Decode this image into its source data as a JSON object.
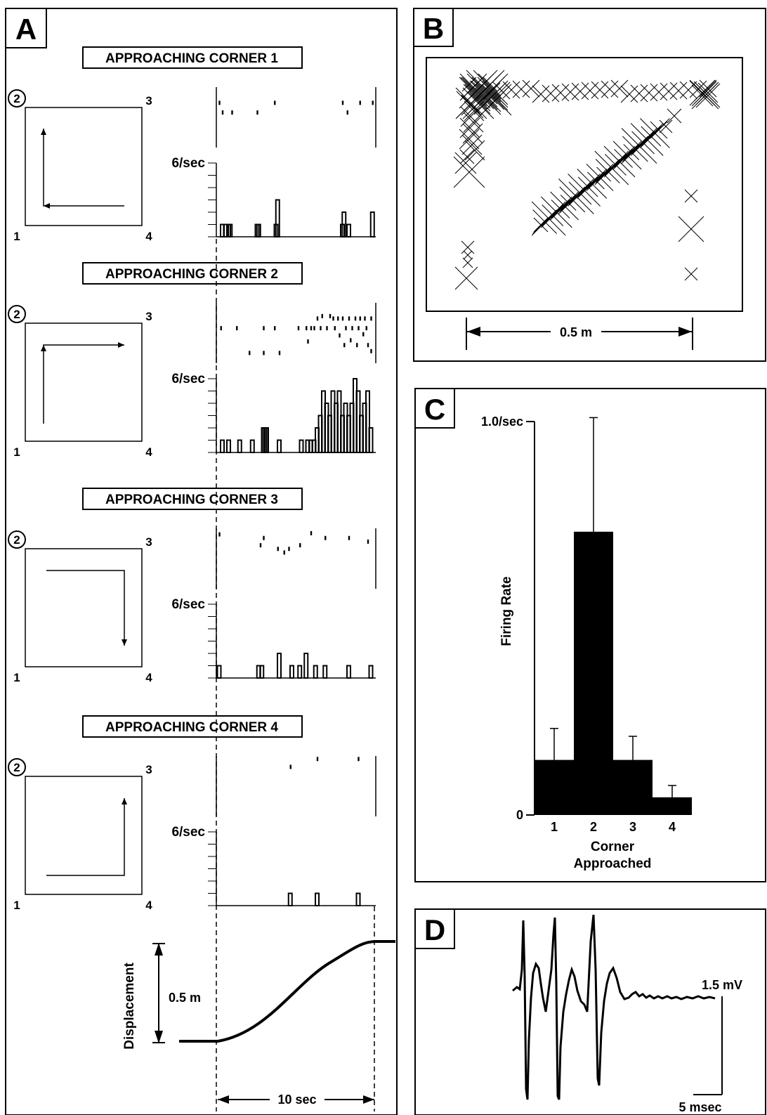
{
  "panels": {
    "A": {
      "letter": "A",
      "rows": [
        {
          "title": "APPROACHING CORNER 1",
          "corners": [
            "2",
            "3",
            "1",
            "4"
          ],
          "rate_label": "6/sec",
          "path": "corner4-to-corner1",
          "raster": [
            [
              0.02,
              0.26
            ],
            [
              0.04,
              0.42
            ],
            [
              0.1,
              0.42
            ],
            [
              0.26,
              0.42
            ],
            [
              0.37,
              0.26
            ],
            [
              0.8,
              0.26
            ],
            [
              0.83,
              0.42
            ],
            [
              0.91,
              0.26
            ],
            [
              0.99,
              0.26
            ]
          ],
          "histogram": [
            [
              0.04,
              1
            ],
            [
              0.06,
              1
            ],
            [
              0.08,
              1
            ],
            [
              0.09,
              1
            ],
            [
              0.26,
              1
            ],
            [
              0.27,
              1
            ],
            [
              0.38,
              1
            ],
            [
              0.39,
              3
            ],
            [
              0.8,
              1
            ],
            [
              0.81,
              2
            ],
            [
              0.84,
              1
            ],
            [
              0.99,
              2
            ]
          ]
        },
        {
          "title": "APPROACHING CORNER 2",
          "corners": [
            "2",
            "3",
            "1",
            "4"
          ],
          "rate_label": "6/sec",
          "path": "corner1-to-corner2-to-corner3",
          "raster": [
            [
              0.03,
              0.42
            ],
            [
              0.13,
              0.42
            ],
            [
              0.21,
              0.83
            ],
            [
              0.3,
              0.42
            ],
            [
              0.37,
              0.42
            ],
            [
              0.3,
              0.83
            ],
            [
              0.4,
              0.83
            ],
            [
              0.52,
              0.42
            ],
            [
              0.57,
              0.42
            ],
            [
              0.58,
              0.64
            ],
            [
              0.6,
              0.42
            ],
            [
              0.62,
              0.42
            ],
            [
              0.64,
              0.26
            ],
            [
              0.66,
              0.42
            ],
            [
              0.67,
              0.22
            ],
            [
              0.7,
              0.42
            ],
            [
              0.72,
              0.22
            ],
            [
              0.74,
              0.26
            ],
            [
              0.75,
              0.42
            ],
            [
              0.77,
              0.26
            ],
            [
              0.78,
              0.54
            ],
            [
              0.8,
              0.26
            ],
            [
              0.81,
              0.7
            ],
            [
              0.82,
              0.42
            ],
            [
              0.84,
              0.26
            ],
            [
              0.85,
              0.62
            ],
            [
              0.86,
              0.42
            ],
            [
              0.88,
              0.26
            ],
            [
              0.89,
              0.7
            ],
            [
              0.9,
              0.42
            ],
            [
              0.91,
              0.26
            ],
            [
              0.93,
              0.52
            ],
            [
              0.94,
              0.26
            ],
            [
              0.95,
              0.42
            ],
            [
              0.96,
              0.7
            ],
            [
              0.98,
              0.26
            ],
            [
              0.98,
              0.8
            ]
          ],
          "histogram": [
            [
              0.04,
              1
            ],
            [
              0.08,
              1
            ],
            [
              0.15,
              1
            ],
            [
              0.23,
              1
            ],
            [
              0.3,
              2
            ],
            [
              0.31,
              2
            ],
            [
              0.32,
              2
            ],
            [
              0.4,
              1
            ],
            [
              0.54,
              1
            ],
            [
              0.58,
              1
            ],
            [
              0.6,
              1
            ],
            [
              0.62,
              1
            ],
            [
              0.64,
              2
            ],
            [
              0.66,
              3
            ],
            [
              0.68,
              5
            ],
            [
              0.7,
              4
            ],
            [
              0.72,
              3
            ],
            [
              0.74,
              5
            ],
            [
              0.76,
              4
            ],
            [
              0.78,
              5
            ],
            [
              0.8,
              3
            ],
            [
              0.82,
              4
            ],
            [
              0.84,
              3
            ],
            [
              0.86,
              4
            ],
            [
              0.88,
              6
            ],
            [
              0.9,
              5
            ],
            [
              0.92,
              3
            ],
            [
              0.94,
              4
            ],
            [
              0.96,
              5
            ],
            [
              0.98,
              2
            ]
          ]
        },
        {
          "title": "APPROACHING CORNER 3",
          "corners": [
            "2",
            "3",
            "1",
            "4"
          ],
          "rate_label": "6/sec",
          "path": "corner1-to-corner4-to-corner3",
          "raster": [
            [
              0.02,
              0.1
            ],
            [
              0.28,
              0.28
            ],
            [
              0.3,
              0.16
            ],
            [
              0.39,
              0.34
            ],
            [
              0.43,
              0.4
            ],
            [
              0.46,
              0.34
            ],
            [
              0.53,
              0.28
            ],
            [
              0.6,
              0.08
            ],
            [
              0.69,
              0.16
            ],
            [
              0.84,
              0.16
            ],
            [
              0.96,
              0.22
            ]
          ],
          "histogram": [
            [
              0.02,
              1
            ],
            [
              0.27,
              1
            ],
            [
              0.29,
              1
            ],
            [
              0.4,
              2
            ],
            [
              0.48,
              1
            ],
            [
              0.53,
              1
            ],
            [
              0.57,
              2
            ],
            [
              0.63,
              1
            ],
            [
              0.69,
              1
            ],
            [
              0.84,
              1
            ],
            [
              0.98,
              1
            ]
          ]
        },
        {
          "title": "APPROACHING CORNER 4",
          "corners": [
            "2",
            "3",
            "1",
            "4"
          ],
          "rate_label": "6/sec",
          "path": "corner2-to-corner3-to-corner4",
          "raster": [
            [
              0.47,
              0.18
            ],
            [
              0.64,
              0.05
            ],
            [
              0.9,
              0.05
            ]
          ],
          "histogram": [
            [
              0.47,
              1
            ],
            [
              0.64,
              1
            ],
            [
              0.9,
              1
            ]
          ]
        }
      ],
      "displacement": {
        "ylabel": "Displacement",
        "distance_label": "0.5 m",
        "time_label": "10 sec"
      }
    },
    "B": {
      "letter": "B",
      "scale_label": "0.5 m",
      "marker": "cross"
    },
    "C": {
      "letter": "C",
      "ymax_label": "1.0/sec",
      "yzero_label": "0",
      "ylabel": "Firing Rate",
      "xlabel_line1": "Corner",
      "xlabel_line2": "Approached"
    },
    "D": {
      "letter": "D",
      "amplitude_label": "1.5 mV",
      "time_label": "5 msec"
    }
  },
  "chart_data": {
    "type": "bar",
    "categories": [
      "1",
      "2",
      "3",
      "4"
    ],
    "values": [
      0.14,
      0.72,
      0.14,
      0.045
    ],
    "errors": [
      0.08,
      0.29,
      0.06,
      0.03
    ],
    "xlabel": "Corner Approached",
    "ylabel": "Firing Rate",
    "ylim": [
      0,
      1.0
    ],
    "ytick_labels": [
      "0",
      "1.0/sec"
    ]
  }
}
